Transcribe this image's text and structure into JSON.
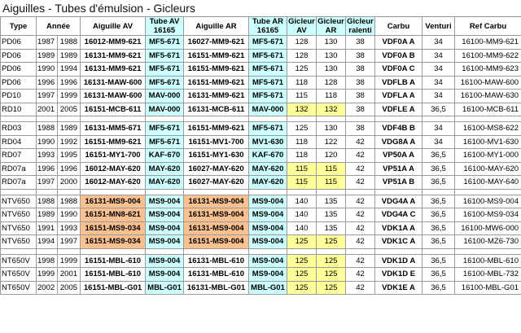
{
  "title": "Aiguilles - Tubes d'émulsion - Gicleurs",
  "table": {
    "headers": [
      [
        "Type"
      ],
      [
        "Année"
      ],
      [
        "Aiguille AV"
      ],
      [
        "Tube AV",
        "16165"
      ],
      [
        "Aiguille AR"
      ],
      [
        "Tube AR",
        "16165"
      ],
      [
        "Gicleur",
        "AV"
      ],
      [
        "Gicleur",
        "AR"
      ],
      [
        "Gicleur",
        "ralenti"
      ],
      [
        "Carbu"
      ],
      [
        "Venturi"
      ],
      [
        "Ref Carbu"
      ]
    ],
    "groups": [
      [
        [
          "PD06",
          "1987",
          "1988",
          "16012-MM9-621",
          "MF5-671",
          "16027-MM9-621",
          "MF5-671",
          "128",
          "130",
          "38",
          "VDF0A A",
          "34",
          "16100-MM9-621"
        ],
        [
          "PD06",
          "1989",
          "1989",
          "16131-MM9-621",
          "MF5-671",
          "16151-MM9-621",
          "MF5-671",
          "128",
          "130",
          "38",
          "VDF0A B",
          "34",
          "16100-MM9-622"
        ],
        [
          "PD06",
          "1990",
          "1994",
          "16131-MM9-621",
          "MF5-671",
          "16151-MM9-621",
          "MF5-671",
          "125",
          "130",
          "38",
          "VDF0A C",
          "34",
          "16100-MM9-623"
        ],
        [
          "PD06",
          "1996",
          "1996",
          "16131-MAW-600",
          "MF5-671",
          "16151-MM9-621",
          "MF5-671",
          "118",
          "128",
          "38",
          "VDFLB A",
          "34",
          "16100-MAW-600"
        ],
        [
          "PD10",
          "1997",
          "1999",
          "16131-MAW-600",
          "MAV-000",
          "16131-MM9-621",
          "MF5-671",
          "115",
          "118",
          "38",
          "VDFLA A",
          "34",
          "16100-MAW-630"
        ],
        [
          "RD10",
          "2001",
          "2005",
          "16151-MCB-611",
          "MAV-000",
          "16131-MCB-611",
          "MAV-000",
          "132",
          "132",
          "38",
          "VDFLE A",
          "36,5",
          "16100-MCB-611"
        ]
      ],
      [
        [
          "RD03",
          "1988",
          "1989",
          "16131-MM5-671",
          "MF5-671",
          "16151-MM9-621",
          "MF5-671",
          "125",
          "130",
          "38",
          "VDF4B B",
          "34",
          "16100-MS8-622"
        ],
        [
          "RD04",
          "1990",
          "1992",
          "16151-MM9-621",
          "MF5-671",
          "16151-MV1-700",
          "MV1-630",
          "118",
          "122",
          "42",
          "VDG8A A",
          "34",
          "16100-MV1-630"
        ],
        [
          "RD07",
          "1993",
          "1995",
          "16151-MY1-700",
          "KAF-670",
          "16151-MY1-630",
          "KAF-670",
          "118",
          "120",
          "42",
          "VP50A A",
          "36,5",
          "16100-MY1-000"
        ],
        [
          "RD07a",
          "1996",
          "1996",
          "16012-MAY-620",
          "MAY-620",
          "16027-MAY-620",
          "MAY-620",
          "115",
          "115",
          "42",
          "VP51A A",
          "36,5",
          "16100-MAY-620"
        ],
        [
          "RD07a",
          "1997",
          "2000",
          "16012-MAY-620",
          "MAY-620",
          "16027-MAY-620",
          "MAY-620",
          "115",
          "115",
          "42",
          "VP51A B",
          "36,5",
          "16100-MAY-640"
        ]
      ],
      [
        [
          "NTV650",
          "1988",
          "1988",
          "16131-MS9-004",
          "MS9-004",
          "16131-MS9-004",
          "MS9-004",
          "140",
          "135",
          "42",
          "VDG4A A",
          "36,5",
          "16100-MS9-004"
        ],
        [
          "NTV650",
          "1989",
          "1990",
          "16151-MN8-621",
          "MS9-004",
          "16131-MS9-004",
          "MS9-004",
          "140",
          "135",
          "42",
          "VDG4A C",
          "36,5",
          "16100-MS9-034"
        ],
        [
          "NTV650",
          "1991",
          "1993",
          "16151-MS9-034",
          "MS9-004",
          "16131-MS9-004",
          "MS9-004",
          "140",
          "135",
          "42",
          "VDK1A A",
          "36,5",
          "16100-MW6-000"
        ],
        [
          "NTV650",
          "1994",
          "1997",
          "16151-MS9-034",
          "MS9-004",
          "16151-MS9-004",
          "MS9-004",
          "125",
          "125",
          "42",
          "VDK1C A",
          "36,5",
          "16100-MZ6-730"
        ]
      ],
      [
        [
          "NT650V",
          "1998",
          "1999",
          "16151-MBL-610",
          "MS9-004",
          "16131-MBL-610",
          "MS9-004",
          "125",
          "125",
          "42",
          "VDK1D A",
          "36,5",
          "16100-MBL-610"
        ],
        [
          "NT650V",
          "1999",
          "2001",
          "16151-MBL-610",
          "MS9-004",
          "16131-MBL-610",
          "MS9-004",
          "125",
          "125",
          "42",
          "VDK1D E",
          "36,5",
          "16100-MBL-732"
        ],
        [
          "NT650V",
          "2002",
          "2005",
          "16151-MBL-G01",
          "MBL-G01",
          "16131-MBL-G01",
          "MBL-G01",
          "125",
          "125",
          "42",
          "VDK1E A",
          "36,5",
          "16100-MBL-G01"
        ]
      ]
    ]
  }
}
